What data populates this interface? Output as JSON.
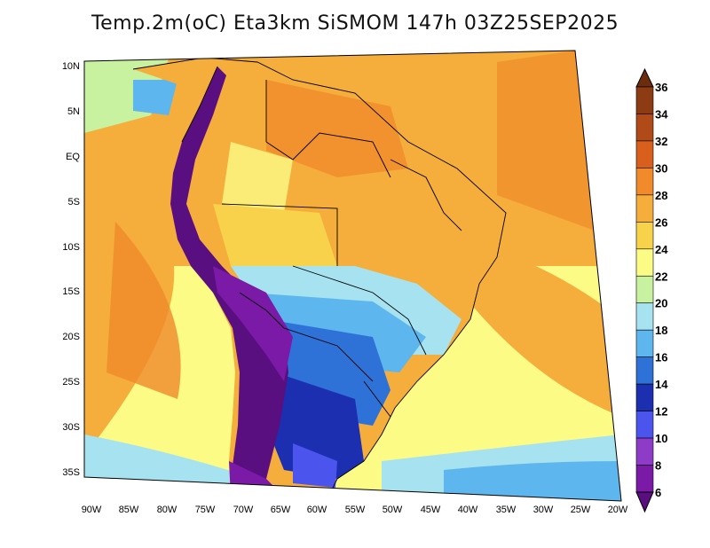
{
  "title": "Temp.2m(oC) Eta3km SiSMOM 147h 03Z25SEP2025",
  "map": {
    "lat_labels": [
      "10N",
      "5N",
      "EQ",
      "5S",
      "10S",
      "15S",
      "20S",
      "25S",
      "30S",
      "35S"
    ],
    "lon_labels": [
      "90W",
      "85W",
      "80W",
      "75W",
      "70W",
      "65W",
      "60W",
      "55W",
      "50W",
      "45W",
      "40W",
      "35W",
      "30W",
      "25W",
      "20W"
    ]
  },
  "colorbar": {
    "labels": [
      "36",
      "34",
      "32",
      "30",
      "28",
      "26",
      "24",
      "22",
      "20",
      "18",
      "16",
      "14",
      "12",
      "10",
      "8",
      "6"
    ],
    "colors": [
      "#6b2d0c",
      "#8c3b12",
      "#b04a18",
      "#d9601c",
      "#f08a2a",
      "#f5ad3c",
      "#f7d24a",
      "#fbfb85",
      "#c8f2a0",
      "#a6e2f0",
      "#5eb6ee",
      "#2e72d8",
      "#1c2fb0",
      "#4b55ee",
      "#8e3cc8",
      "#7a1aa6",
      "#5a0f80"
    ]
  }
}
